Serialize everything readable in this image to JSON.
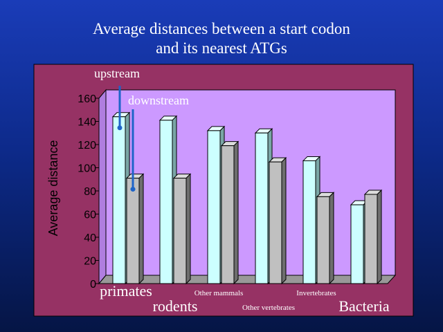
{
  "title": [
    "Average distances between a start codon",
    "and its nearest ATGs"
  ],
  "chart_data": {
    "type": "bar",
    "title": "Average distances between a start codon and its nearest ATGs",
    "ylabel": "Average distance",
    "xlabel": "",
    "ylim": [
      0,
      160
    ],
    "yticks": [
      "0",
      "20",
      "40",
      "60",
      "80",
      "100",
      "120",
      "140",
      "160"
    ],
    "categories": [
      "primates",
      "rodents",
      "Other mammals",
      "Other vertebrates",
      "Invertebrates",
      "Bacteria"
    ],
    "series": [
      {
        "name": "upstream",
        "values": [
          144,
          141,
          132,
          130,
          106,
          68
        ]
      },
      {
        "name": "downstream",
        "values": [
          91,
          91,
          119,
          105,
          75,
          77
        ]
      }
    ],
    "legend": "inline arrows near first group",
    "grid": false
  },
  "colors": {
    "plot_background": "#963264",
    "plot_wall": "#cc99ff",
    "plot_floor": "#999999",
    "upstream_bar": "#ccffff",
    "downstream_bar": "#c0c0c0",
    "annotation_arrow": "#1e64c8",
    "text_on_dark": "#ffffff"
  }
}
